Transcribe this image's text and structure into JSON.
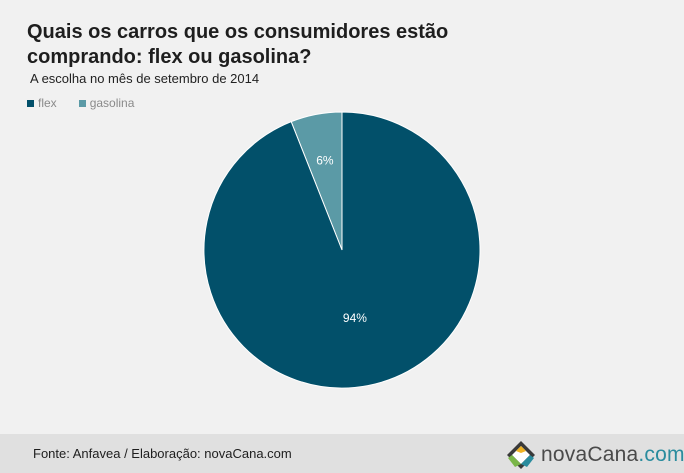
{
  "header": {
    "title": "Quais os carros que os consumidores estão comprando: flex ou  gasolina?",
    "subtitle": "A escolha no mês de setembro de 2014"
  },
  "colors": {
    "flex": "#02506a",
    "gasolina": "#5b9aa6",
    "background": "#f1f1f1",
    "footer": "#e0e0e0"
  },
  "chart_data": {
    "type": "pie",
    "legend_position": "top-left",
    "series": [
      {
        "name": "flex",
        "value": 94,
        "label": "94%",
        "color": "#02506a"
      },
      {
        "name": "gasolina",
        "value": 6,
        "label": "6%",
        "color": "#5b9aa6"
      }
    ]
  },
  "footer": {
    "source": "Fonte: Anfavea / Elaboração: novaCana.com",
    "logo_name": "novaCana",
    "logo_domain": ".com",
    "logo_icon": "diamond-leaf-icon"
  }
}
